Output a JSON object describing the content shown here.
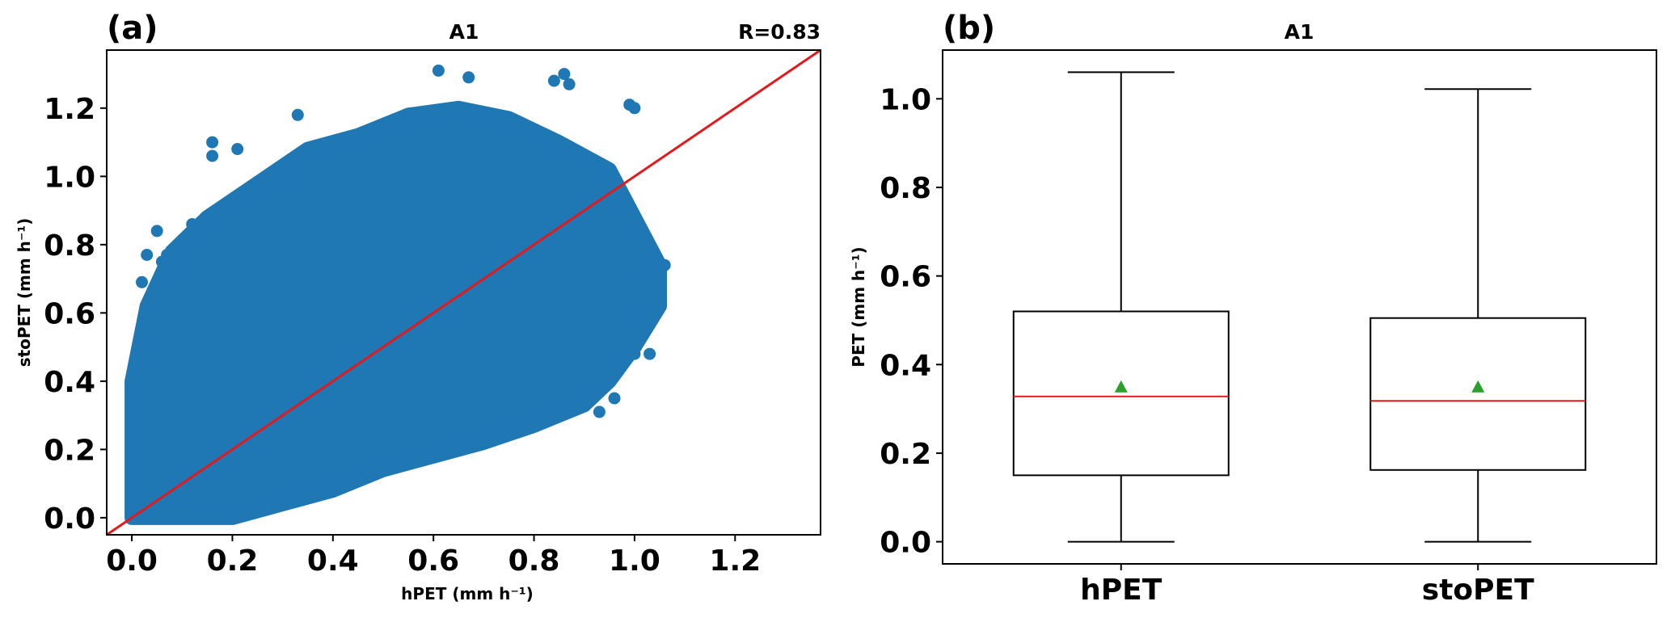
{
  "colors": {
    "points": "#1f77b4",
    "refline": "#e31a1c",
    "median": "#e31a1c",
    "mean": "#2ca02c",
    "axes": "#000000"
  },
  "chart_data": [
    {
      "type": "scatter",
      "panel_label": "(a)",
      "title": "A1",
      "annotation": "R=0.83",
      "xlabel": "hPET (mm h⁻¹)",
      "ylabel": "stoPET (mm h⁻¹)",
      "xlim": [
        -0.05,
        1.37
      ],
      "ylim": [
        -0.05,
        1.37
      ],
      "xticks": [
        0.0,
        0.2,
        0.4,
        0.6,
        0.8,
        1.0,
        1.2
      ],
      "yticks": [
        0.0,
        0.2,
        0.4,
        0.6,
        0.8,
        1.0,
        1.2
      ],
      "xtick_labels": [
        "0.0",
        "0.2",
        "0.4",
        "0.6",
        "0.8",
        "1.0",
        "1.2"
      ],
      "ytick_labels": [
        "0.0",
        "0.2",
        "0.4",
        "0.6",
        "0.8",
        "1.0",
        "1.2"
      ],
      "reference_line": {
        "type": "1:1",
        "from": [
          -0.05,
          -0.05
        ],
        "to": [
          1.37,
          1.37
        ]
      },
      "point_cloud_outline": [
        [
          0.0,
          0.0
        ],
        [
          0.1,
          0.0
        ],
        [
          0.2,
          0.0
        ],
        [
          0.3,
          0.04
        ],
        [
          0.4,
          0.08
        ],
        [
          0.5,
          0.14
        ],
        [
          0.6,
          0.18
        ],
        [
          0.7,
          0.22
        ],
        [
          0.8,
          0.27
        ],
        [
          0.9,
          0.33
        ],
        [
          0.95,
          0.4
        ],
        [
          1.0,
          0.5
        ],
        [
          1.05,
          0.62
        ],
        [
          1.05,
          0.74
        ],
        [
          1.0,
          0.88
        ],
        [
          0.95,
          1.02
        ],
        [
          0.85,
          1.1
        ],
        [
          0.75,
          1.17
        ],
        [
          0.65,
          1.2
        ],
        [
          0.55,
          1.18
        ],
        [
          0.45,
          1.12
        ],
        [
          0.35,
          1.08
        ],
        [
          0.25,
          0.98
        ],
        [
          0.15,
          0.88
        ],
        [
          0.08,
          0.78
        ],
        [
          0.03,
          0.62
        ],
        [
          0.0,
          0.4
        ]
      ],
      "outlier_points": [
        [
          0.61,
          1.31
        ],
        [
          0.67,
          1.29
        ],
        [
          0.84,
          1.28
        ],
        [
          0.86,
          1.3
        ],
        [
          0.87,
          1.27
        ],
        [
          0.33,
          1.18
        ],
        [
          0.16,
          1.1
        ],
        [
          0.21,
          1.08
        ],
        [
          0.16,
          1.06
        ],
        [
          0.99,
          1.21
        ],
        [
          1.0,
          1.2
        ],
        [
          0.05,
          0.84
        ],
        [
          0.07,
          0.77
        ],
        [
          0.03,
          0.77
        ],
        [
          0.06,
          0.75
        ],
        [
          0.02,
          0.69
        ],
        [
          1.06,
          0.74
        ],
        [
          1.03,
          0.71
        ],
        [
          1.01,
          0.6
        ],
        [
          1.03,
          0.48
        ],
        [
          1.0,
          0.48
        ],
        [
          0.96,
          0.35
        ],
        [
          0.93,
          0.31
        ],
        [
          0.26,
          0.98
        ],
        [
          0.31,
          0.99
        ],
        [
          0.12,
          0.86
        ]
      ]
    },
    {
      "type": "box",
      "panel_label": "(b)",
      "title": "A1",
      "ylabel": "PET (mm h⁻¹)",
      "categories": [
        "hPET",
        "stoPET"
      ],
      "ylim": [
        -0.05,
        1.11
      ],
      "yticks": [
        0.0,
        0.2,
        0.4,
        0.6,
        0.8,
        1.0
      ],
      "ytick_labels": [
        "0.0",
        "0.2",
        "0.4",
        "0.6",
        "0.8",
        "1.0"
      ],
      "boxes": [
        {
          "name": "hPET",
          "whisker_low": 0.0,
          "q1": 0.15,
          "median": 0.328,
          "q3": 0.52,
          "whisker_high": 1.06,
          "mean": 0.348
        },
        {
          "name": "stoPET",
          "whisker_low": 0.0,
          "q1": 0.162,
          "median": 0.318,
          "q3": 0.505,
          "whisker_high": 1.022,
          "mean": 0.348
        }
      ]
    }
  ]
}
